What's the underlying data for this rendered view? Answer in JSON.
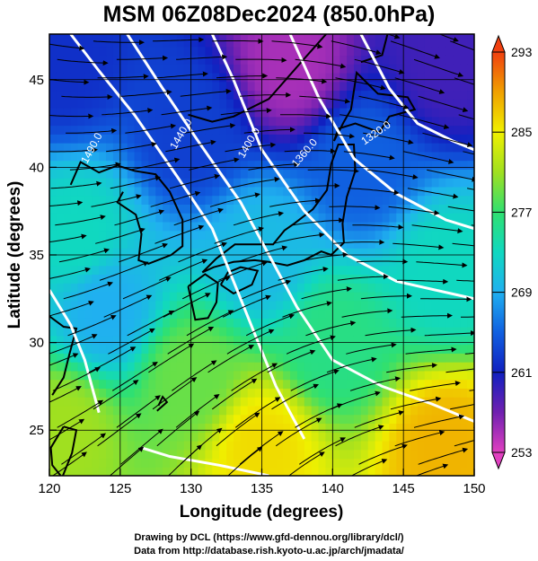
{
  "title": "MSM 06Z08Dec2024 (850.0hPa)",
  "credits": {
    "line1": "Drawing by DCL (https://www.gfd-dennou.org/library/dcl/)",
    "line2": "Data from http://database.rish.kyoto-u.ac.jp/arch/jmadata/"
  },
  "chart_data": {
    "type": "heatmap",
    "title": "MSM 06Z08Dec2024 (850.0hPa)",
    "xlabel": "Longitude (degrees)",
    "ylabel": "Latitude  (degrees)",
    "xlim": [
      120,
      150
    ],
    "ylim": [
      22.4,
      47.6
    ],
    "xticks": [
      120,
      125,
      130,
      135,
      140,
      145,
      150
    ],
    "yticks": [
      25,
      30,
      35,
      40,
      45
    ],
    "grid": true,
    "colorbar": {
      "range": [
        253,
        293
      ],
      "ticks": [
        253,
        261,
        269,
        277,
        285,
        293
      ],
      "colors": [
        "#e040c0",
        "#7020b0",
        "#1020c0",
        "#1060e0",
        "#20b0f0",
        "#10d8c0",
        "#30e070",
        "#a0e020",
        "#f0f000",
        "#f0a000",
        "#f04010"
      ]
    },
    "contours": {
      "labels": [
        "1490.0",
        "1440.0",
        "1400.0",
        "1360.0",
        "1320.0"
      ],
      "color": "#ffffff"
    },
    "temperature_samples": [
      {
        "lon": 121,
        "lat": 46,
        "value": 262
      },
      {
        "lon": 137,
        "lat": 46,
        "value": 255
      },
      {
        "lon": 148,
        "lat": 46,
        "value": 259
      },
      {
        "lon": 130,
        "lat": 42,
        "value": 263
      },
      {
        "lon": 142,
        "lat": 40,
        "value": 265
      },
      {
        "lon": 122,
        "lat": 36,
        "value": 273
      },
      {
        "lon": 135,
        "lat": 35,
        "value": 270
      },
      {
        "lon": 148,
        "lat": 34,
        "value": 273
      },
      {
        "lon": 124,
        "lat": 32,
        "value": 269
      },
      {
        "lon": 140,
        "lat": 30,
        "value": 276
      },
      {
        "lon": 130,
        "lat": 28,
        "value": 279
      },
      {
        "lon": 121,
        "lat": 25,
        "value": 281
      },
      {
        "lon": 135,
        "lat": 24,
        "value": 286
      },
      {
        "lon": 148,
        "lat": 24,
        "value": 288
      }
    ],
    "wind": {
      "type": "streamlines",
      "predominant_direction": "east-northeast"
    }
  }
}
